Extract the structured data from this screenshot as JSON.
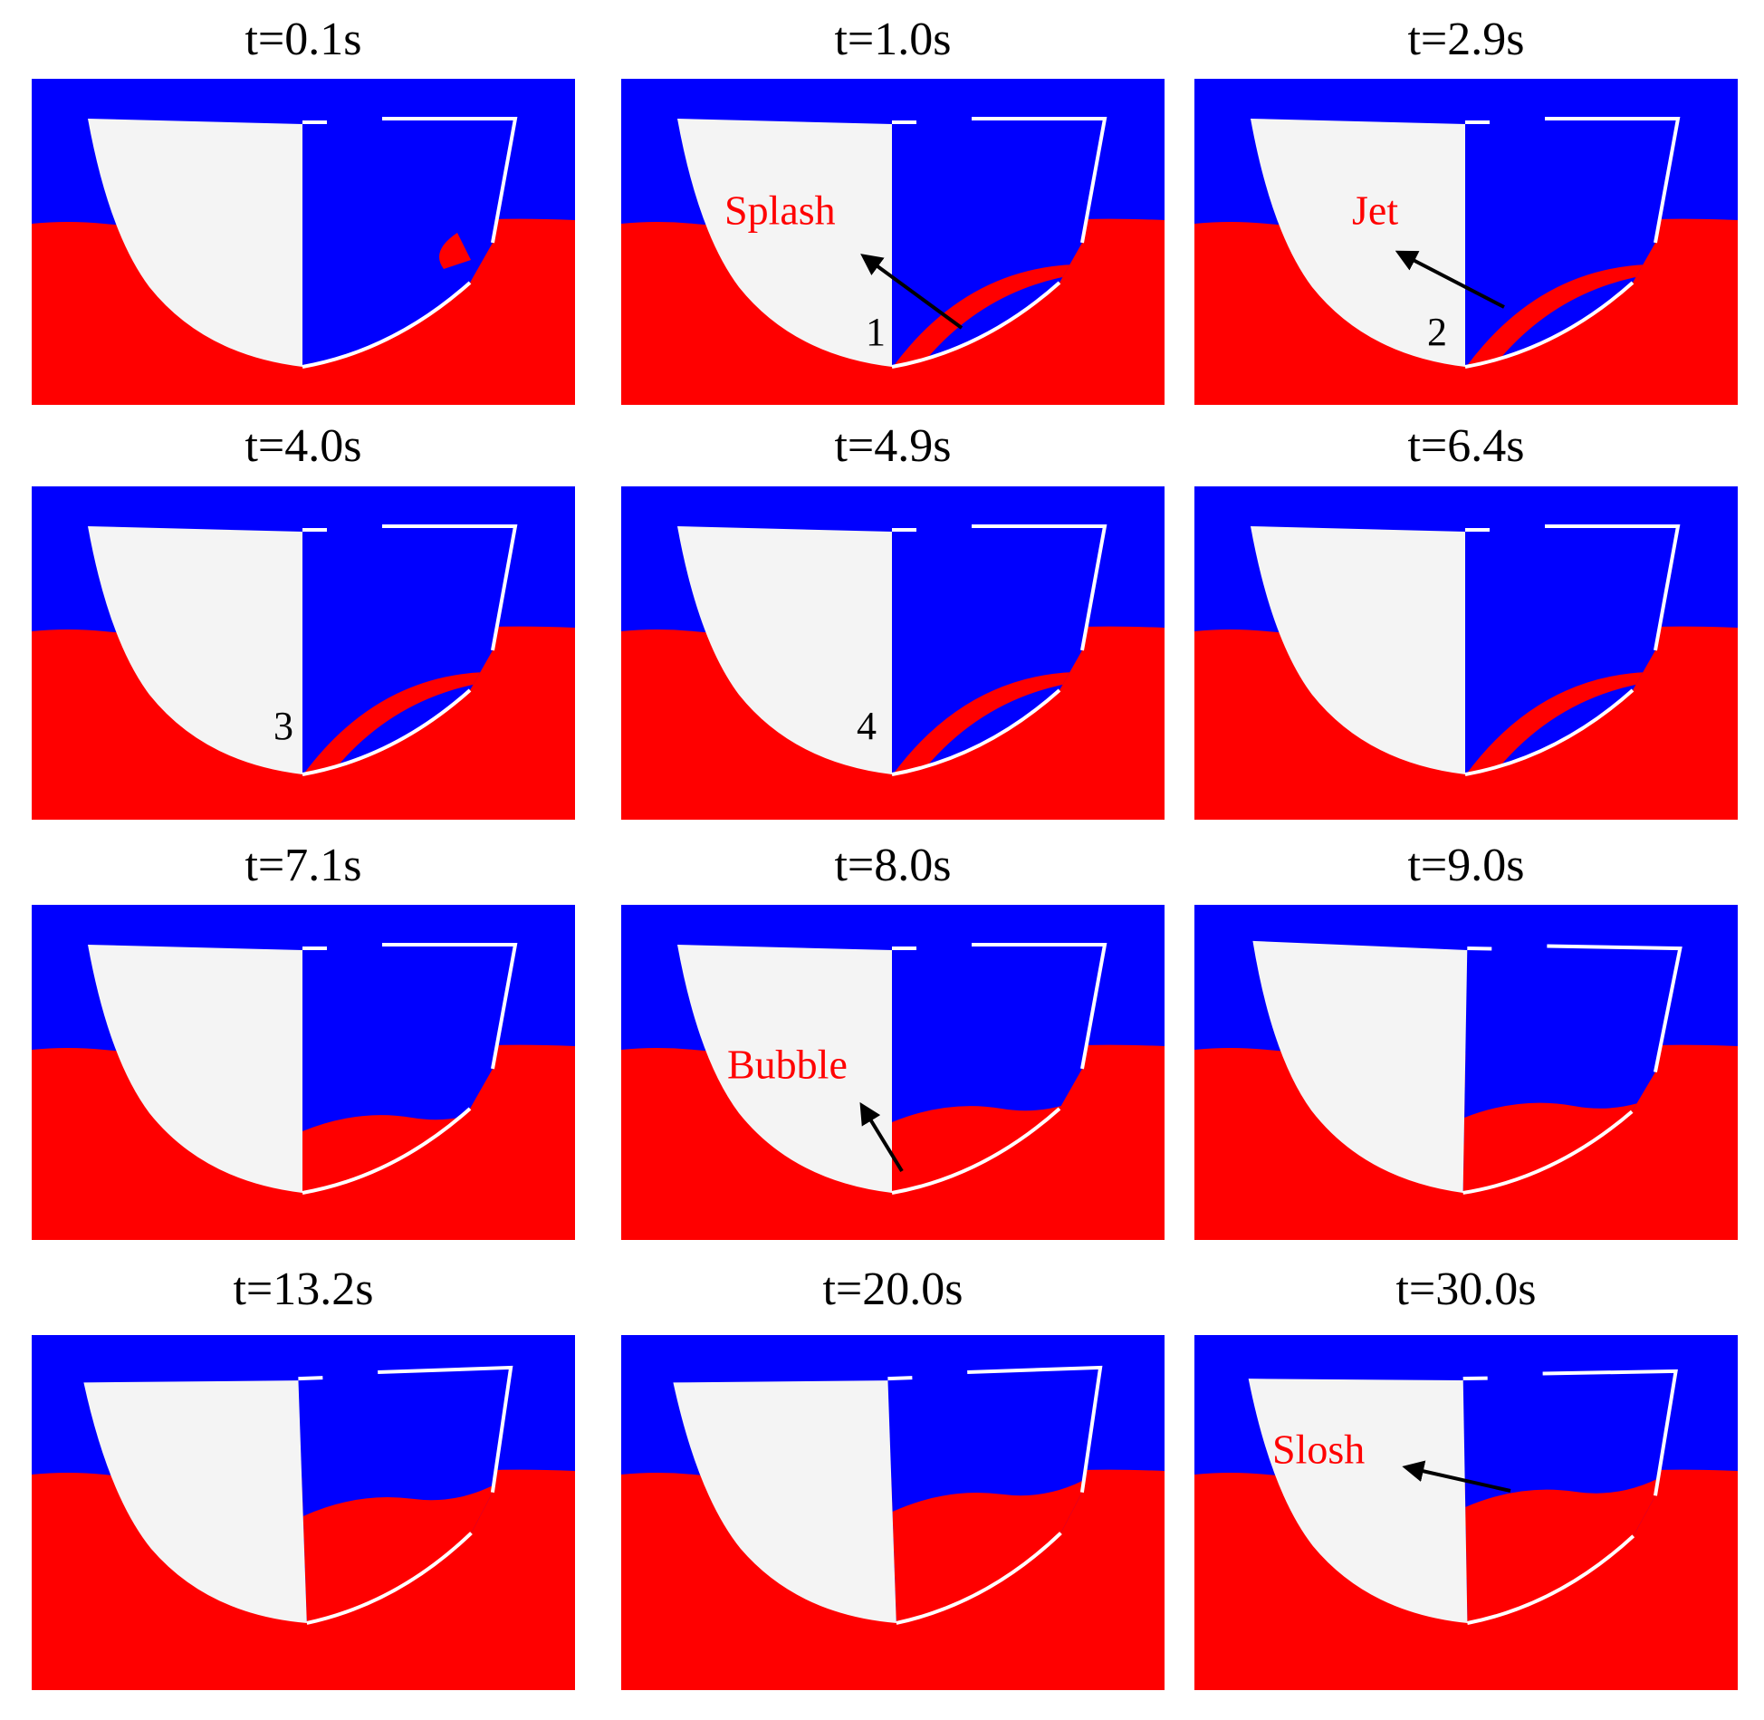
{
  "panels": [
    {
      "title": "t=0.1s",
      "labels": []
    },
    {
      "title": "t=1.0s",
      "labels": [
        "Splash",
        "1"
      ]
    },
    {
      "title": "t=2.9s",
      "labels": [
        "Jet",
        "2"
      ]
    },
    {
      "title": "t=4.0s",
      "labels": [
        "3"
      ]
    },
    {
      "title": "t=4.9s",
      "labels": [
        "4"
      ]
    },
    {
      "title": "t=6.4s",
      "labels": []
    },
    {
      "title": "t=7.1s",
      "labels": []
    },
    {
      "title": "t=8.0s",
      "labels": [
        "Bubble"
      ]
    },
    {
      "title": "t=9.0s",
      "labels": []
    },
    {
      "title": "t=13.2s",
      "labels": []
    },
    {
      "title": "t=20.0s",
      "labels": []
    },
    {
      "title": "t=30.0s",
      "labels": [
        "Slosh"
      ]
    }
  ]
}
